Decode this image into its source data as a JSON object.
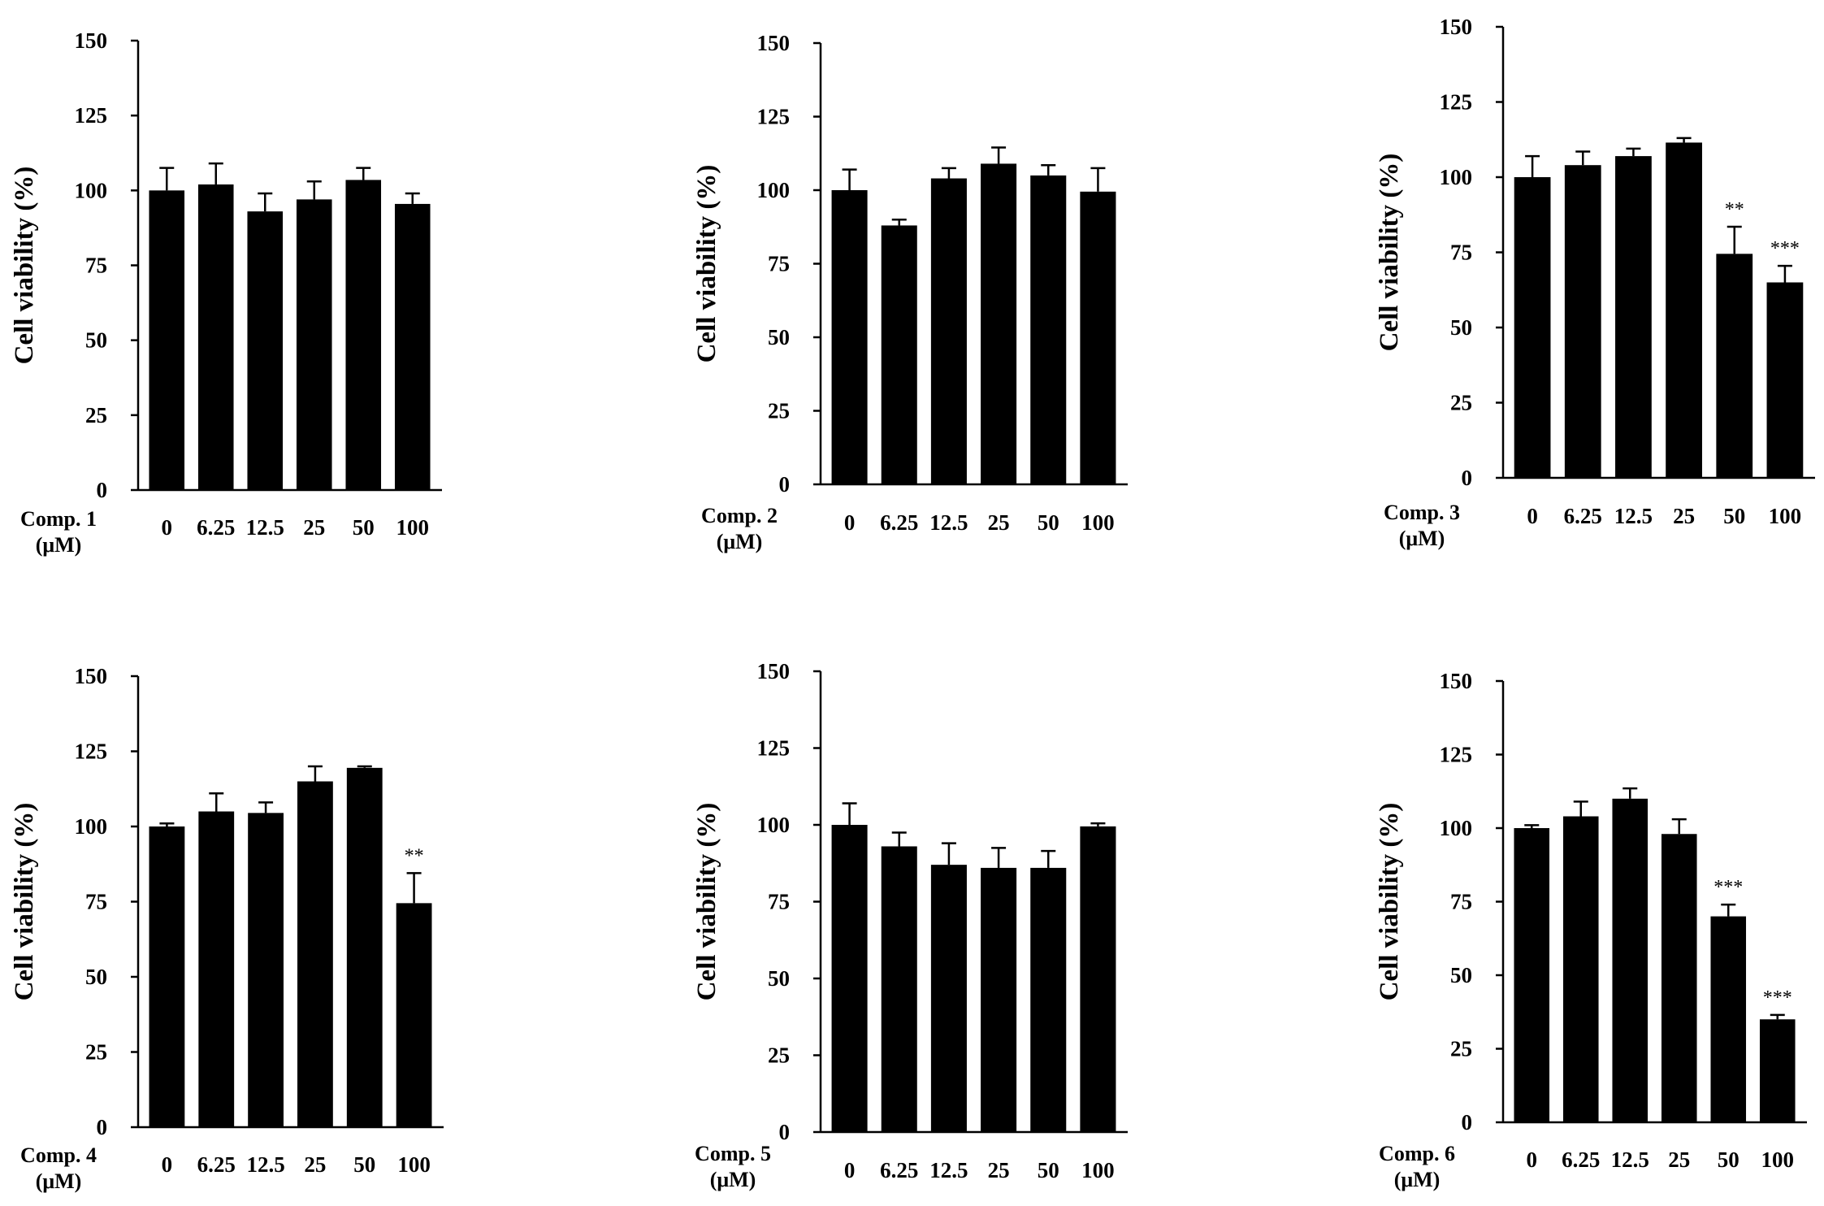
{
  "chart_data": [
    {
      "type": "bar",
      "panel": "Comp. 1",
      "group_label_line1": "Comp. 1",
      "group_label_line2": "(μM)",
      "categories": [
        "0",
        "6.25",
        "12.5",
        "25",
        "50",
        "100"
      ],
      "values": [
        100,
        102,
        93,
        97,
        103.5,
        95.5
      ],
      "errors": [
        7.5,
        7,
        6,
        6,
        4,
        3.5
      ],
      "significance": [
        "",
        "",
        "",
        "",
        "",
        ""
      ],
      "ylabel": "Cell viability (%)",
      "ylim": [
        0,
        150
      ],
      "yticks": [
        "0",
        "25",
        "50",
        "75",
        "100",
        "125",
        "150"
      ]
    },
    {
      "type": "bar",
      "panel": "Comp. 2",
      "group_label_line1": "Comp. 2",
      "group_label_line2": "(μM)",
      "categories": [
        "0",
        "6.25",
        "12.5",
        "25",
        "50",
        "100"
      ],
      "values": [
        100,
        88,
        104,
        109,
        105,
        99.5
      ],
      "errors": [
        7,
        2,
        3.5,
        5.5,
        3.5,
        8
      ],
      "significance": [
        "",
        "",
        "",
        "",
        "",
        ""
      ],
      "ylabel": "Cell viability (%)",
      "ylim": [
        0,
        150
      ],
      "yticks": [
        "0",
        "25",
        "50",
        "75",
        "100",
        "125",
        "150"
      ]
    },
    {
      "type": "bar",
      "panel": "Comp. 3",
      "group_label_line1": "Comp. 3",
      "group_label_line2": "(μM)",
      "categories": [
        "0",
        "6.25",
        "12.5",
        "25",
        "50",
        "100"
      ],
      "values": [
        100,
        104,
        107,
        111.5,
        74.5,
        65
      ],
      "errors": [
        7,
        4.5,
        2.5,
        1.5,
        9,
        5.5
      ],
      "significance": [
        "",
        "",
        "",
        "",
        "**",
        "***"
      ],
      "ylabel": "Cell viability (%)",
      "ylim": [
        0,
        150
      ],
      "yticks": [
        "0",
        "25",
        "50",
        "75",
        "100",
        "125",
        "150"
      ]
    },
    {
      "type": "bar",
      "panel": "Comp. 4",
      "group_label_line1": "Comp. 4",
      "group_label_line2": "(μM)",
      "categories": [
        "0",
        "6.25",
        "12.5",
        "25",
        "50",
        "100"
      ],
      "values": [
        100,
        105,
        104.5,
        115,
        119.5,
        74.5
      ],
      "errors": [
        1,
        6,
        3.5,
        5,
        0.5,
        10
      ],
      "significance": [
        "",
        "",
        "",
        "",
        "",
        "**"
      ],
      "ylabel": "Cell viability (%)",
      "ylim": [
        0,
        150
      ],
      "yticks": [
        "0",
        "25",
        "50",
        "75",
        "100",
        "125",
        "150"
      ]
    },
    {
      "type": "bar",
      "panel": "Comp. 5",
      "group_label_line1": "Comp. 5",
      "group_label_line2": "(μM)",
      "categories": [
        "0",
        "6.25",
        "12.5",
        "25",
        "50",
        "100"
      ],
      "values": [
        100,
        93,
        87,
        86,
        86,
        99.5
      ],
      "errors": [
        7,
        4.5,
        7,
        6.5,
        5.5,
        1
      ],
      "significance": [
        "",
        "",
        "",
        "",
        "",
        ""
      ],
      "ylabel": "Cell viability (%)",
      "ylim": [
        0,
        150
      ],
      "yticks": [
        "0",
        "25",
        "50",
        "75",
        "100",
        "125",
        "150"
      ]
    },
    {
      "type": "bar",
      "panel": "Comp. 6",
      "group_label_line1": "Comp. 6",
      "group_label_line2": "(μM)",
      "categories": [
        "0",
        "6.25",
        "12.5",
        "25",
        "50",
        "100"
      ],
      "values": [
        100,
        104,
        110,
        98,
        70,
        35
      ],
      "errors": [
        1,
        5,
        3.5,
        5,
        4,
        1.5
      ],
      "significance": [
        "",
        "",
        "",
        "",
        "***",
        "***"
      ],
      "ylabel": "Cell viability (%)",
      "ylim": [
        0,
        150
      ],
      "yticks": [
        "0",
        "25",
        "50",
        "75",
        "100",
        "125",
        "150"
      ]
    }
  ]
}
